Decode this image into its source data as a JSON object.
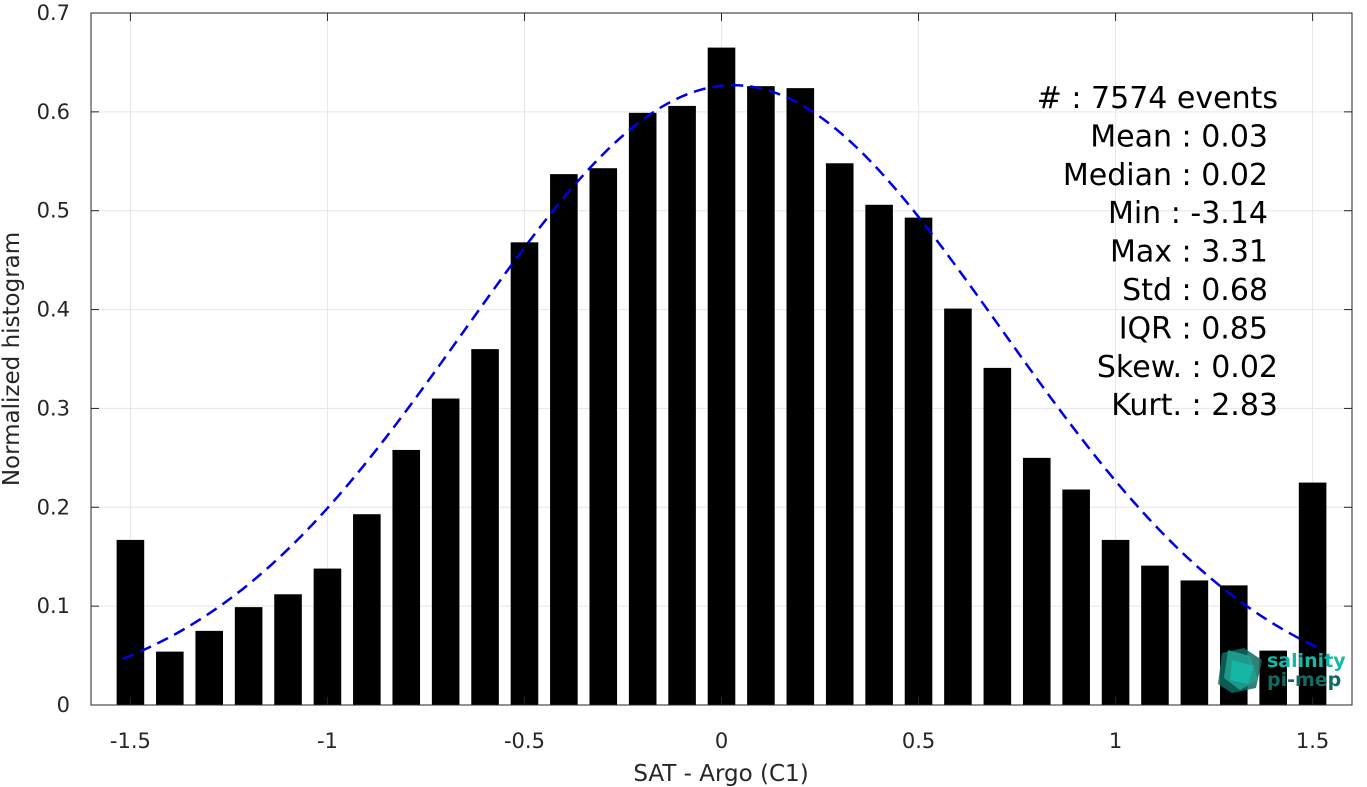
{
  "chart_data": {
    "type": "bar",
    "xlabel": "SAT - Argo (C1)",
    "ylabel": "Normalized histogram",
    "xlim": [
      -1.6,
      1.6
    ],
    "ylim": [
      0,
      0.7
    ],
    "x_ticks": [
      -1.5,
      -1,
      -0.5,
      0,
      0.5,
      1,
      1.5
    ],
    "x_tick_labels": [
      "-1.5",
      "-1",
      "-0.5",
      "0",
      "0.5",
      "1",
      "1.5"
    ],
    "y_ticks": [
      0,
      0.1,
      0.2,
      0.3,
      0.4,
      0.5,
      0.6,
      0.7
    ],
    "y_tick_labels": [
      "0",
      "0.1",
      "0.2",
      "0.3",
      "0.4",
      "0.5",
      "0.6",
      "0.7"
    ],
    "grid": true,
    "bar_color": "#000000",
    "bar_width": 0.07,
    "bars": {
      "x": [
        -1.5,
        -1.4,
        -1.3,
        -1.2,
        -1.1,
        -1.0,
        -0.9,
        -0.8,
        -0.7,
        -0.6,
        -0.5,
        -0.4,
        -0.3,
        -0.2,
        -0.1,
        0.0,
        0.1,
        0.2,
        0.3,
        0.4,
        0.5,
        0.6,
        0.7,
        0.8,
        0.9,
        1.0,
        1.1,
        1.2,
        1.3,
        1.4,
        1.5
      ],
      "values": [
        0.167,
        0.054,
        0.075,
        0.099,
        0.112,
        0.138,
        0.193,
        0.258,
        0.31,
        0.36,
        0.468,
        0.537,
        0.543,
        0.599,
        0.606,
        0.665,
        0.626,
        0.624,
        0.548,
        0.506,
        0.493,
        0.401,
        0.341,
        0.25,
        0.218,
        0.167,
        0.141,
        0.126,
        0.121,
        0.055,
        0.225
      ]
    },
    "fit_curve": {
      "type": "gaussian",
      "style": "dashed",
      "color": "#0000e6",
      "mean": 0.03,
      "std": 0.68,
      "peak": 0.627,
      "x_range": [
        -1.52,
        1.52
      ]
    },
    "stats": [
      {
        "label": "#  : 7574 events"
      },
      {
        "label": "Mean : 0.03"
      },
      {
        "label": "Median : 0.02"
      },
      {
        "label": "Min : -3.14"
      },
      {
        "label": "Max : 3.31"
      },
      {
        "label": "Std : 0.68"
      },
      {
        "label": "IQR : 0.85"
      },
      {
        "label": "Skew. : 0.02"
      },
      {
        "label": "Kurt. : 2.83"
      }
    ]
  },
  "logo": {
    "line1": "salinity",
    "line2": "pi-mep",
    "colors": [
      "#1f9e8f",
      "#17b8a6",
      "#0e6b61"
    ]
  }
}
